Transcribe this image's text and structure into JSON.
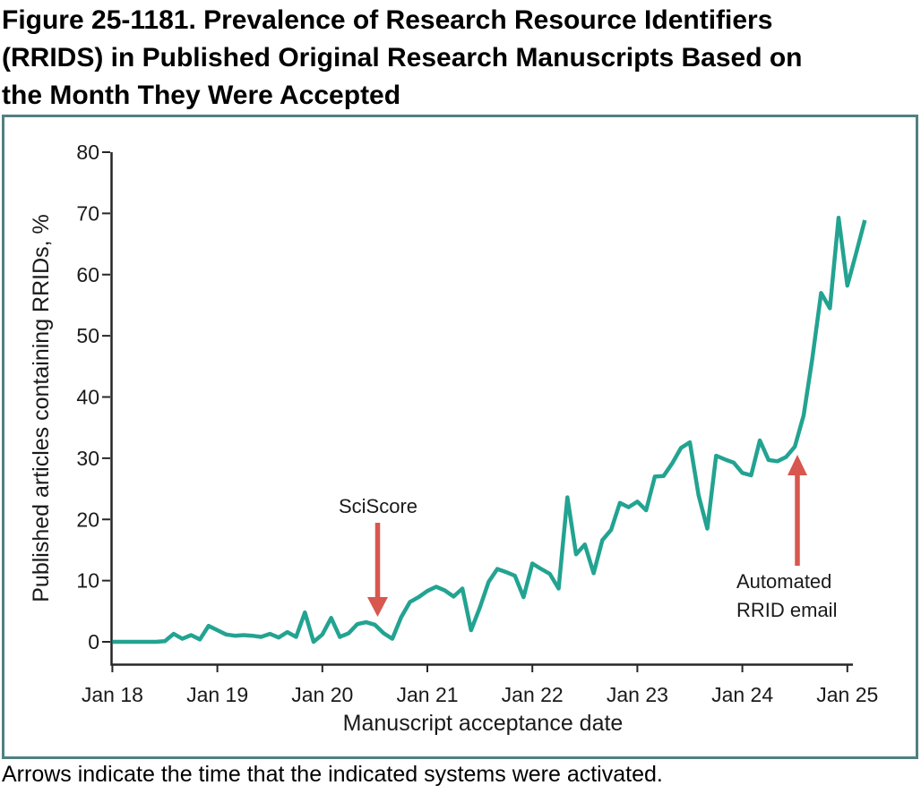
{
  "figure": {
    "title_lines": [
      "Figure 25-1181. Prevalence of Research Resource Identifiers",
      "(RRIDS) in Published Original Research Manuscripts Based on",
      "the Month They Were Accepted"
    ],
    "footnote": "Arrows indicate the time that the indicated systems were activated."
  },
  "chart_data": {
    "type": "line",
    "title": "",
    "xlabel": "Manuscript acceptance date",
    "ylabel": "Published articles containing RRIDs, %",
    "x_tick_labels": [
      "Jan 18",
      "Jan 19",
      "Jan 20",
      "Jan 21",
      "Jan 22",
      "Jan 23",
      "Jan 24",
      "Jan 25"
    ],
    "y_tick_labels": [
      "0",
      "10",
      "20",
      "30",
      "40",
      "50",
      "60",
      "70",
      "80"
    ],
    "ylim": [
      0,
      80
    ],
    "grid": false,
    "legend_position": "none",
    "x_range": [
      "2018-01",
      "2025-03"
    ],
    "months": [
      "2018-01",
      "2018-02",
      "2018-03",
      "2018-04",
      "2018-05",
      "2018-06",
      "2018-07",
      "2018-08",
      "2018-09",
      "2018-10",
      "2018-11",
      "2018-12",
      "2019-01",
      "2019-02",
      "2019-03",
      "2019-04",
      "2019-05",
      "2019-06",
      "2019-07",
      "2019-08",
      "2019-09",
      "2019-10",
      "2019-11",
      "2019-12",
      "2020-01",
      "2020-02",
      "2020-03",
      "2020-04",
      "2020-05",
      "2020-06",
      "2020-07",
      "2020-08",
      "2020-09",
      "2020-10",
      "2020-11",
      "2020-12",
      "2021-01",
      "2021-02",
      "2021-03",
      "2021-04",
      "2021-05",
      "2021-06",
      "2021-07",
      "2021-08",
      "2021-09",
      "2021-10",
      "2021-11",
      "2021-12",
      "2022-01",
      "2022-02",
      "2022-03",
      "2022-04",
      "2022-05",
      "2022-06",
      "2022-07",
      "2022-08",
      "2022-09",
      "2022-10",
      "2022-11",
      "2022-12",
      "2023-01",
      "2023-02",
      "2023-03",
      "2023-04",
      "2023-05",
      "2023-06",
      "2023-07",
      "2023-08",
      "2023-09",
      "2023-10",
      "2023-11",
      "2023-12",
      "2024-01",
      "2024-02",
      "2024-03",
      "2024-04",
      "2024-05",
      "2024-06",
      "2024-07",
      "2024-08",
      "2024-09",
      "2024-10",
      "2024-11",
      "2024-12",
      "2025-01",
      "2025-02",
      "2025-03"
    ],
    "series": [
      {
        "name": "Published articles containing RRIDs, %",
        "values": [
          0,
          0,
          0,
          0,
          0,
          0,
          0.1,
          1.3,
          0.5,
          1.1,
          0.4,
          2.6,
          1.9,
          1.2,
          1.0,
          1.1,
          1.0,
          0.8,
          1.3,
          0.7,
          1.6,
          0.8,
          4.8,
          0,
          1.2,
          3.9,
          0.8,
          1.4,
          2.9,
          3.2,
          2.8,
          1.4,
          0.5,
          4.0,
          6.5,
          7.3,
          8.3,
          9.0,
          8.4,
          7.4,
          8.7,
          1.9,
          5.6,
          9.8,
          11.9,
          11.4,
          10.8,
          7.3,
          12.8,
          11.9,
          11.1,
          8.7,
          23.6,
          14.3,
          15.9,
          11.2,
          16.6,
          18.3,
          22.7,
          22.0,
          22.9,
          21.5,
          27.0,
          27.1,
          29.2,
          31.7,
          32.6,
          23.9,
          18.5,
          30.4,
          29.8,
          29.3,
          27.6,
          27.2,
          32.9,
          29.7,
          29.5,
          30.2,
          31.9,
          37.0,
          46.3,
          57.0,
          54.5,
          69.3,
          58.2,
          63.5,
          68.9
        ]
      }
    ],
    "annotations": [
      {
        "label": "SciScore",
        "month": "2020-07",
        "arrow_direction": "down"
      },
      {
        "label": "Automated RRID email",
        "month": "2024-07",
        "arrow_direction": "up"
      }
    ],
    "colors": {
      "line": "#23A391",
      "arrow": "#D8574E",
      "frame": "#517F81",
      "axis": "#262626"
    }
  }
}
